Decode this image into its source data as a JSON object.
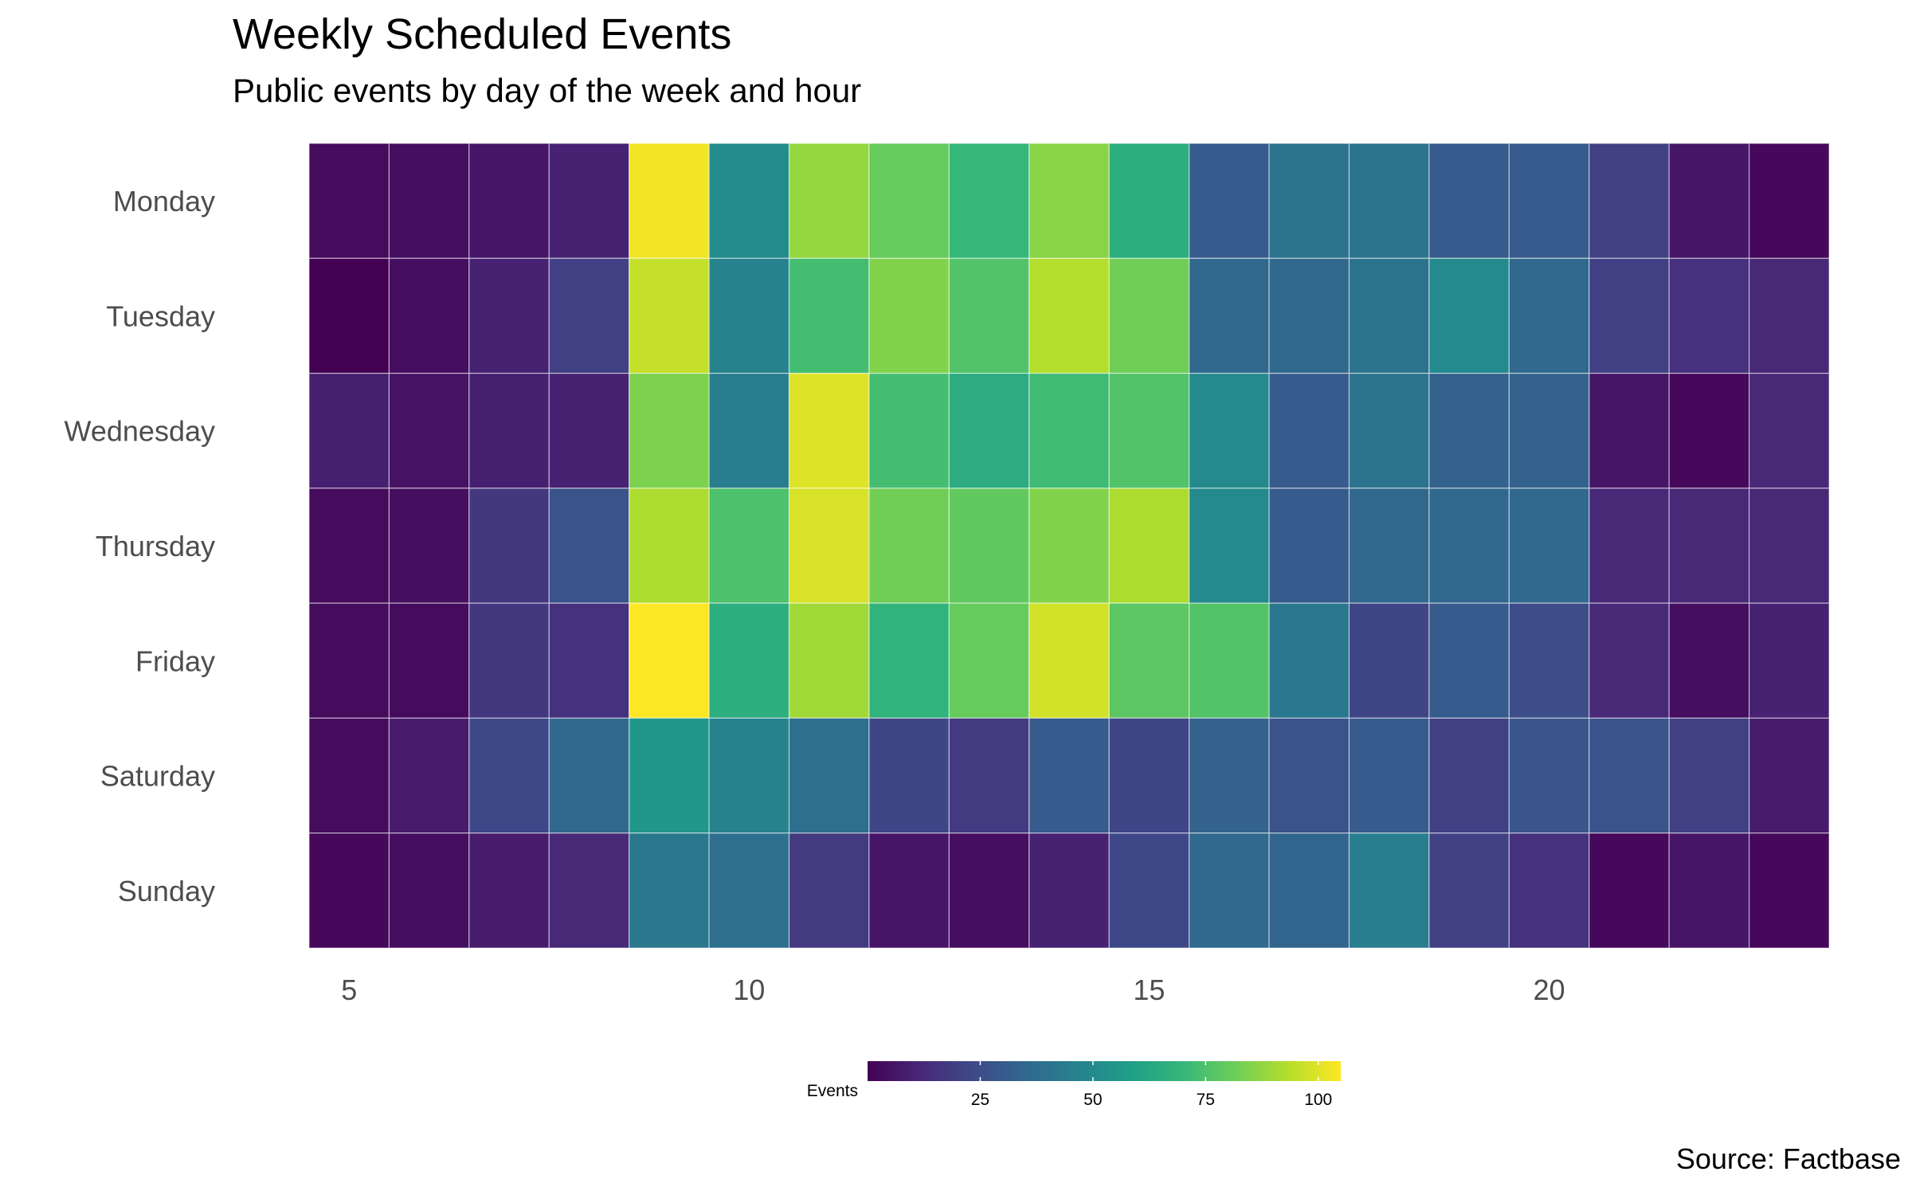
{
  "chart_data": {
    "type": "heatmap",
    "title": "Weekly Scheduled Events",
    "subtitle": "Public events by day of the week and hour",
    "caption": "Source: Factbase",
    "x": [
      5,
      6,
      7,
      8,
      9,
      10,
      11,
      12,
      13,
      14,
      15,
      16,
      17,
      18,
      19,
      20,
      21,
      22,
      23
    ],
    "x_ticks": [
      5,
      10,
      15,
      20
    ],
    "y": [
      "Monday",
      "Tuesday",
      "Wednesday",
      "Thursday",
      "Friday",
      "Saturday",
      "Sunday"
    ],
    "z": [
      [
        3,
        4,
        6,
        10,
        103,
        51,
        88,
        80,
        70,
        86,
        66,
        30,
        40,
        40,
        30,
        30,
        20,
        6,
        2
      ],
      [
        0,
        4,
        10,
        20,
        96,
        47,
        73,
        85,
        76,
        93,
        82,
        35,
        35,
        40,
        50,
        35,
        20,
        15,
        12
      ],
      [
        9,
        5,
        9,
        10,
        84,
        45,
        100,
        73,
        65,
        72,
        76,
        50,
        30,
        40,
        33,
        33,
        6,
        2,
        12
      ],
      [
        3,
        4,
        17,
        27,
        92,
        75,
        99,
        82,
        79,
        85,
        92,
        50,
        30,
        35,
        35,
        35,
        12,
        12,
        12
      ],
      [
        3,
        3,
        17,
        15,
        105,
        66,
        90,
        68,
        80,
        98,
        78,
        76,
        42,
        22,
        30,
        25,
        12,
        4,
        10
      ],
      [
        3,
        8,
        23,
        35,
        55,
        47,
        38,
        22,
        18,
        30,
        22,
        33,
        27,
        30,
        20,
        28,
        27,
        20,
        8
      ],
      [
        2,
        4,
        8,
        12,
        42,
        38,
        18,
        6,
        4,
        10,
        23,
        36,
        34,
        45,
        20,
        15,
        2,
        6,
        2
      ]
    ],
    "color_scale": {
      "name": "viridis",
      "min": 0,
      "max": 105,
      "stops": [
        "#440154",
        "#482878",
        "#3e4989",
        "#31688e",
        "#26828e",
        "#1f9e89",
        "#35b779",
        "#6ece58",
        "#b5de2b",
        "#fde725"
      ]
    },
    "legend": {
      "title": "Events",
      "ticks": [
        25,
        50,
        75,
        100
      ],
      "position": "bottom"
    },
    "grid": false
  }
}
